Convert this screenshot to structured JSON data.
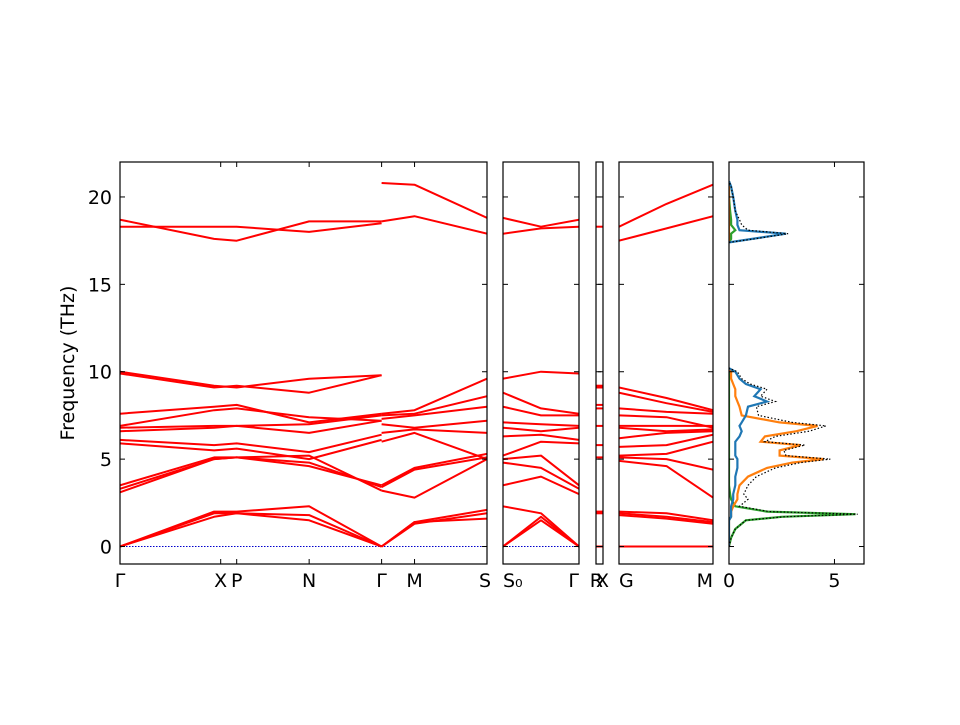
{
  "chart_data": {
    "type": "line",
    "ylabel": "Frequency (THz)",
    "ylim": [
      -1,
      22
    ],
    "yticks": [
      0,
      5,
      10,
      15,
      20
    ],
    "band_color": "#ff0000",
    "zero_line_color": "#0000cc",
    "panels": [
      {
        "id": "path1",
        "x_range": [
          0,
          3.9
        ],
        "tick_positions": [
          0,
          1.07,
          1.24,
          2.01,
          2.78,
          3.13,
          3.9
        ],
        "tick_labels": [
          "Γ",
          "X",
          "P",
          "N",
          "Γ",
          "M",
          "S"
        ],
        "segments": [
          {
            "x": [
              0,
              1.0,
              1.24,
              2.01,
              2.78
            ],
            "bands": [
              [
                0,
                1.7,
                1.9,
                1.5,
                0
              ],
              [
                0,
                1.9,
                1.9,
                1.8,
                0
              ],
              [
                0,
                2.0,
                2.0,
                2.3,
                0
              ],
              [
                3.1,
                5.0,
                5.1,
                4.6,
                3.5
              ],
              [
                3.3,
                5.0,
                5.1,
                4.8,
                3.4
              ],
              [
                3.5,
                5.1,
                5.1,
                5.2,
                3.2
              ],
              [
                5.9,
                5.5,
                5.6,
                5.0,
                6.1
              ],
              [
                6.1,
                5.8,
                5.9,
                5.4,
                6.4
              ],
              [
                6.6,
                6.8,
                6.9,
                6.5,
                7.2
              ],
              [
                6.8,
                6.9,
                6.9,
                7.0,
                7.5
              ],
              [
                6.9,
                7.8,
                7.9,
                7.4,
                7.2
              ],
              [
                7.6,
                8.0,
                8.1,
                7.1,
                7.6
              ],
              [
                9.9,
                9.1,
                9.2,
                8.8,
                9.8
              ],
              [
                10.0,
                9.2,
                9.1,
                9.6,
                9.8
              ],
              [
                18.3,
                18.3,
                18.3,
                18.0,
                18.5
              ],
              [
                18.7,
                17.6,
                17.5,
                18.6,
                18.6
              ]
            ]
          },
          {
            "x": [
              2.78,
              3.13,
              3.9
            ],
            "bands": [
              [
                0,
                1.3,
                1.9
              ],
              [
                0,
                1.4,
                1.6
              ],
              [
                0,
                1.4,
                2.1
              ],
              [
                3.2,
                2.8,
                5.0
              ],
              [
                3.4,
                4.4,
                5.1
              ],
              [
                3.5,
                4.5,
                5.3
              ],
              [
                6.0,
                6.5,
                5.0
              ],
              [
                6.5,
                6.7,
                6.5
              ],
              [
                7.0,
                6.8,
                7.2
              ],
              [
                7.3,
                7.5,
                8.0
              ],
              [
                7.5,
                7.6,
                8.6
              ],
              [
                7.6,
                7.8,
                9.6
              ],
              [
                18.6,
                18.9,
                17.9
              ],
              [
                20.8,
                20.7,
                18.8
              ]
            ]
          }
        ]
      },
      {
        "id": "path2",
        "x_range": [
          0,
          0.78
        ],
        "tick_positions": [
          0,
          0.78
        ],
        "tick_labels": [
          "S₀",
          "Γ"
        ],
        "segments": [
          {
            "x": [
              0,
              0.39,
              0.78
            ],
            "bands": [
              [
                0,
                1.5,
                0
              ],
              [
                0,
                1.7,
                0
              ],
              [
                2.3,
                1.9,
                0
              ],
              [
                3.5,
                4.0,
                3.0
              ],
              [
                4.8,
                4.5,
                3.3
              ],
              [
                5.0,
                5.2,
                3.5
              ],
              [
                5.2,
                6.0,
                5.9
              ],
              [
                6.3,
                6.4,
                6.1
              ],
              [
                6.8,
                6.6,
                6.8
              ],
              [
                7.1,
                7.0,
                6.9
              ],
              [
                8.0,
                7.5,
                7.5
              ],
              [
                8.8,
                7.9,
                7.6
              ],
              [
                9.6,
                10.0,
                9.9
              ],
              [
                17.9,
                18.2,
                18.3
              ],
              [
                18.8,
                18.3,
                18.7
              ]
            ]
          }
        ]
      },
      {
        "id": "path3",
        "x_range": [
          0,
          0.06
        ],
        "tick_positions": [
          0,
          0.06
        ],
        "tick_labels": [
          "X",
          "R"
        ],
        "segments": [
          {
            "x": [
              0,
              0.06
            ],
            "bands": [
              [
                0,
                0
              ],
              [
                1.9,
                1.9
              ],
              [
                2.0,
                2.0
              ],
              [
                5.1,
                5.1
              ],
              [
                5.8,
                5.8
              ],
              [
                6.9,
                6.9
              ],
              [
                7.9,
                7.9
              ],
              [
                8.1,
                8.1
              ],
              [
                9.1,
                9.1
              ],
              [
                9.2,
                9.2
              ],
              [
                18.3,
                18.3
              ]
            ]
          }
        ]
      },
      {
        "id": "path4",
        "x_range": [
          0,
          0.95
        ],
        "tick_positions": [
          0,
          0.95
        ],
        "tick_labels": [
          "G",
          "M"
        ],
        "segments": [
          {
            "x": [
              0,
              0.48,
              0.95
            ],
            "bands": [
              [
                0,
                0,
                0
              ],
              [
                1.8,
                1.6,
                1.3
              ],
              [
                1.9,
                1.7,
                1.4
              ],
              [
                2.0,
                1.9,
                1.5
              ],
              [
                4.9,
                4.6,
                2.8
              ],
              [
                5.1,
                5.0,
                4.4
              ],
              [
                5.2,
                5.3,
                6.0
              ],
              [
                5.7,
                5.8,
                6.4
              ],
              [
                6.2,
                6.5,
                6.6
              ],
              [
                6.8,
                6.6,
                6.7
              ],
              [
                6.9,
                6.9,
                6.9
              ],
              [
                7.5,
                7.4,
                6.8
              ],
              [
                7.9,
                7.7,
                7.6
              ],
              [
                8.8,
                8.2,
                7.7
              ],
              [
                9.1,
                8.5,
                7.8
              ],
              [
                17.5,
                18.2,
                18.9
              ],
              [
                18.3,
                19.6,
                20.7
              ]
            ]
          }
        ]
      },
      {
        "id": "dos",
        "type": "dos",
        "xlim": [
          0,
          6.4
        ],
        "xticks": [
          0,
          5
        ],
        "xtick_labels": [
          "0",
          "5"
        ],
        "frequencies": [
          0,
          0.5,
          1.0,
          1.5,
          1.7,
          1.85,
          2.0,
          2.3,
          2.7,
          3.0,
          3.5,
          4.0,
          4.5,
          4.8,
          5.0,
          5.2,
          5.5,
          5.8,
          6.0,
          6.3,
          6.6,
          6.9,
          7.1,
          7.5,
          8.0,
          8.3,
          8.6,
          9.0,
          9.3,
          9.6,
          10.0,
          10.2,
          17.4,
          17.6,
          17.9,
          18.1,
          18.4,
          18.7,
          19.2,
          20.0,
          20.6,
          20.9
        ],
        "total": [
          0,
          0.1,
          0.3,
          0.8,
          2.6,
          6.1,
          1.9,
          0.5,
          0.9,
          0.7,
          0.9,
          1.3,
          2.2,
          3.4,
          4.8,
          2.7,
          2.6,
          3.6,
          1.7,
          2.2,
          3.8,
          4.6,
          3.0,
          1.4,
          1.3,
          2.2,
          1.5,
          1.8,
          1.0,
          0.6,
          0.4,
          0,
          0,
          1.2,
          2.8,
          0.9,
          0.6,
          0.5,
          0.3,
          0.2,
          0.1,
          0
        ],
        "series": [
          {
            "color": "#2ca02c",
            "values": [
              0,
              0.1,
              0.3,
              0.8,
              2.5,
              6.0,
              1.8,
              0.3,
              0.1,
              0.05,
              0,
              0,
              0,
              0,
              0,
              0,
              0,
              0,
              0,
              0,
              0,
              0,
              0,
              0,
              0,
              0,
              0,
              0,
              0,
              0,
              0,
              0,
              0,
              0.1,
              0.1,
              0.3,
              0.1,
              0.1,
              0.05,
              0,
              0,
              0
            ]
          },
          {
            "color": "#ff7f0e",
            "values": [
              0,
              0,
              0,
              0,
              0.1,
              0.1,
              0.1,
              0.2,
              0.4,
              0.4,
              0.5,
              0.9,
              1.8,
              3.0,
              4.5,
              2.4,
              2.4,
              3.4,
              1.5,
              1.7,
              3.2,
              4.2,
              2.4,
              0.6,
              0.5,
              0.4,
              0.3,
              0.3,
              0.2,
              0.1,
              0.1,
              0,
              0,
              0,
              0,
              0,
              0,
              0,
              0,
              0,
              0,
              0
            ]
          },
          {
            "color": "#1f77b4",
            "values": [
              0,
              0,
              0,
              0,
              0.1,
              0.1,
              0.1,
              0.1,
              0.2,
              0.2,
              0.3,
              0.3,
              0.4,
              0.4,
              0.4,
              0.3,
              0.3,
              0.3,
              0.3,
              0.5,
              0.6,
              0.5,
              0.6,
              0.8,
              0.9,
              1.8,
              1.2,
              1.5,
              0.8,
              0.5,
              0.3,
              0,
              0,
              1.1,
              2.7,
              0.5,
              0.4,
              0.4,
              0.3,
              0.2,
              0.1,
              0
            ]
          }
        ]
      }
    ]
  }
}
